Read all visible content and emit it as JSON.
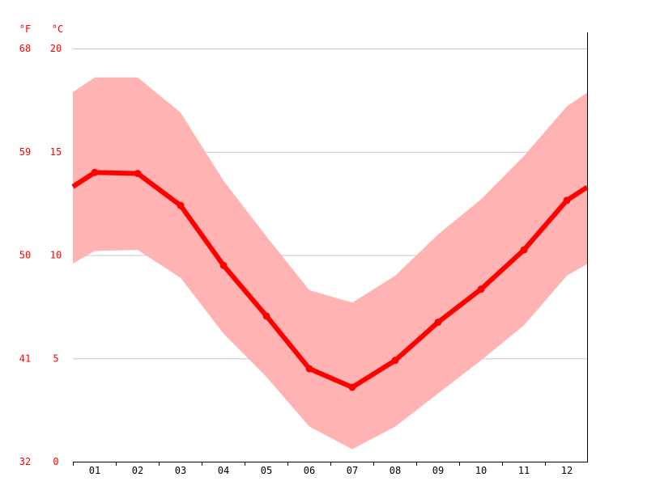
{
  "chart_data": {
    "type": "line",
    "categories": [
      "01",
      "02",
      "03",
      "04",
      "05",
      "06",
      "07",
      "08",
      "09",
      "10",
      "11",
      "12"
    ],
    "series": [
      {
        "values": [
          14.0,
          13.95,
          12.4,
          9.5,
          7.05,
          4.5,
          3.6,
          4.9,
          6.75,
          8.35,
          10.25,
          12.65
        ]
      }
    ],
    "band": {
      "upper": [
        18.6,
        18.6,
        16.9,
        13.6,
        10.9,
        8.3,
        7.7,
        9.0,
        11.0,
        12.7,
        14.8,
        17.2
      ],
      "lower": [
        10.2,
        10.25,
        8.9,
        6.2,
        4.1,
        1.7,
        0.6,
        1.7,
        3.3,
        4.9,
        6.6,
        9.0
      ]
    },
    "y_axis_celsius": {
      "unit": "°C",
      "ticks": [
        "0",
        "5",
        "10",
        "15",
        "20"
      ],
      "ylim": [
        0,
        20
      ]
    },
    "y_axis_fahrenheit": {
      "unit": "°F",
      "ticks": [
        "32",
        "41",
        "50",
        "59",
        "68"
      ]
    },
    "grid": true,
    "colors": {
      "line": "#ff0000",
      "band": "#ffb3b3",
      "grid": "#c8c8c8",
      "axis": "#000000",
      "y_tick_text": "#ff0000",
      "x_tick_text": "#000000"
    }
  }
}
